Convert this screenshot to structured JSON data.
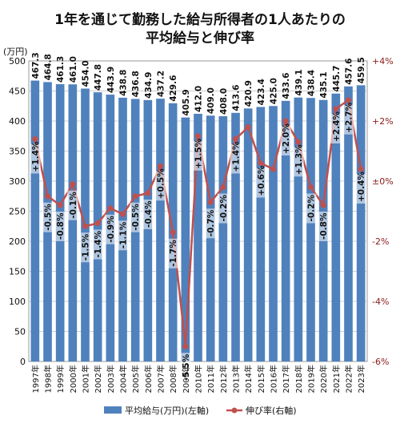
{
  "title_line1": "1年を通じて勤務した給与所得者の1人あたりの",
  "title_line2": "平均給与と伸び率",
  "chart_data": {
    "type": "bar+line",
    "y_left_unit": "(万円)",
    "y_left_ticks": [
      "0",
      "50",
      "100",
      "150",
      "200",
      "250",
      "300",
      "350",
      "400",
      "450",
      "500"
    ],
    "y_left_range": [
      0,
      500
    ],
    "y_right_ticks": [
      "+4%",
      "+2%",
      "±0%",
      "-2%",
      "-4%",
      "-6%"
    ],
    "y_right_range": [
      -6,
      4
    ],
    "categories": [
      "1997年",
      "1998年",
      "1999年",
      "2000年",
      "2001年",
      "2002年",
      "2003年",
      "2004年",
      "2005年",
      "2006年",
      "2007年",
      "2008年",
      "2009年",
      "2010年",
      "2011年",
      "2012年",
      "2013年",
      "2014年",
      "2015年",
      "2016年",
      "2017年",
      "2018年",
      "2019年",
      "2020年",
      "2021年",
      "2022年",
      "2023年"
    ],
    "series": [
      {
        "name": "平均給与(万円)(左軸)",
        "values": [
          467.3,
          464.8,
          461.3,
          461.0,
          454.0,
          447.8,
          443.9,
          438.8,
          436.8,
          434.9,
          437.2,
          429.6,
          405.9,
          412.0,
          409.0,
          408.0,
          413.6,
          420.9,
          423.4,
          425.0,
          433.6,
          439.1,
          438.4,
          435.1,
          445.7,
          457.6,
          459.5
        ],
        "labels": [
          "467.3",
          "464.8",
          "461.3",
          "461.0",
          "454.0",
          "447.8",
          "443.9",
          "438.8",
          "436.8",
          "434.9",
          "437.2",
          "429.6",
          "405.9",
          "412.0",
          "409.0",
          "408.0",
          "413.6",
          "420.9",
          "423.4",
          "425.0",
          "433.6",
          "439.1",
          "438.4",
          "435.1",
          "445.7",
          "457.6",
          "459.5"
        ],
        "color": "#4f81bd"
      },
      {
        "name": "伸び率(右軸)",
        "values": [
          1.4,
          -0.5,
          -0.8,
          -0.1,
          -1.5,
          -1.4,
          -0.9,
          -1.1,
          -0.5,
          -0.4,
          0.5,
          -1.7,
          -5.5,
          1.5,
          -0.7,
          -0.2,
          1.4,
          1.8,
          0.6,
          0.4,
          2.0,
          1.3,
          -0.2,
          -0.8,
          2.4,
          2.7,
          0.4
        ],
        "labels": [
          "+1.4%",
          "-0.5%",
          "-0.8%",
          "-0.1%",
          "-1.5%",
          "-1.4%",
          "-0.9%",
          "-1.1%",
          "-0.5%",
          "-0.4%",
          "+0.5%",
          "-1.7%",
          "-5.5%",
          "+1.5%",
          "-0.7%",
          "-0.2%",
          "+1.4%",
          "",
          "+0.6%",
          "",
          "+2.0%",
          "+1.3%",
          "-0.2%",
          "-0.8%",
          "+2.4%",
          "+2.7%",
          "+0.4%"
        ],
        "color": "#c0504d"
      }
    ],
    "legend_position": "bottom",
    "grid": true
  }
}
